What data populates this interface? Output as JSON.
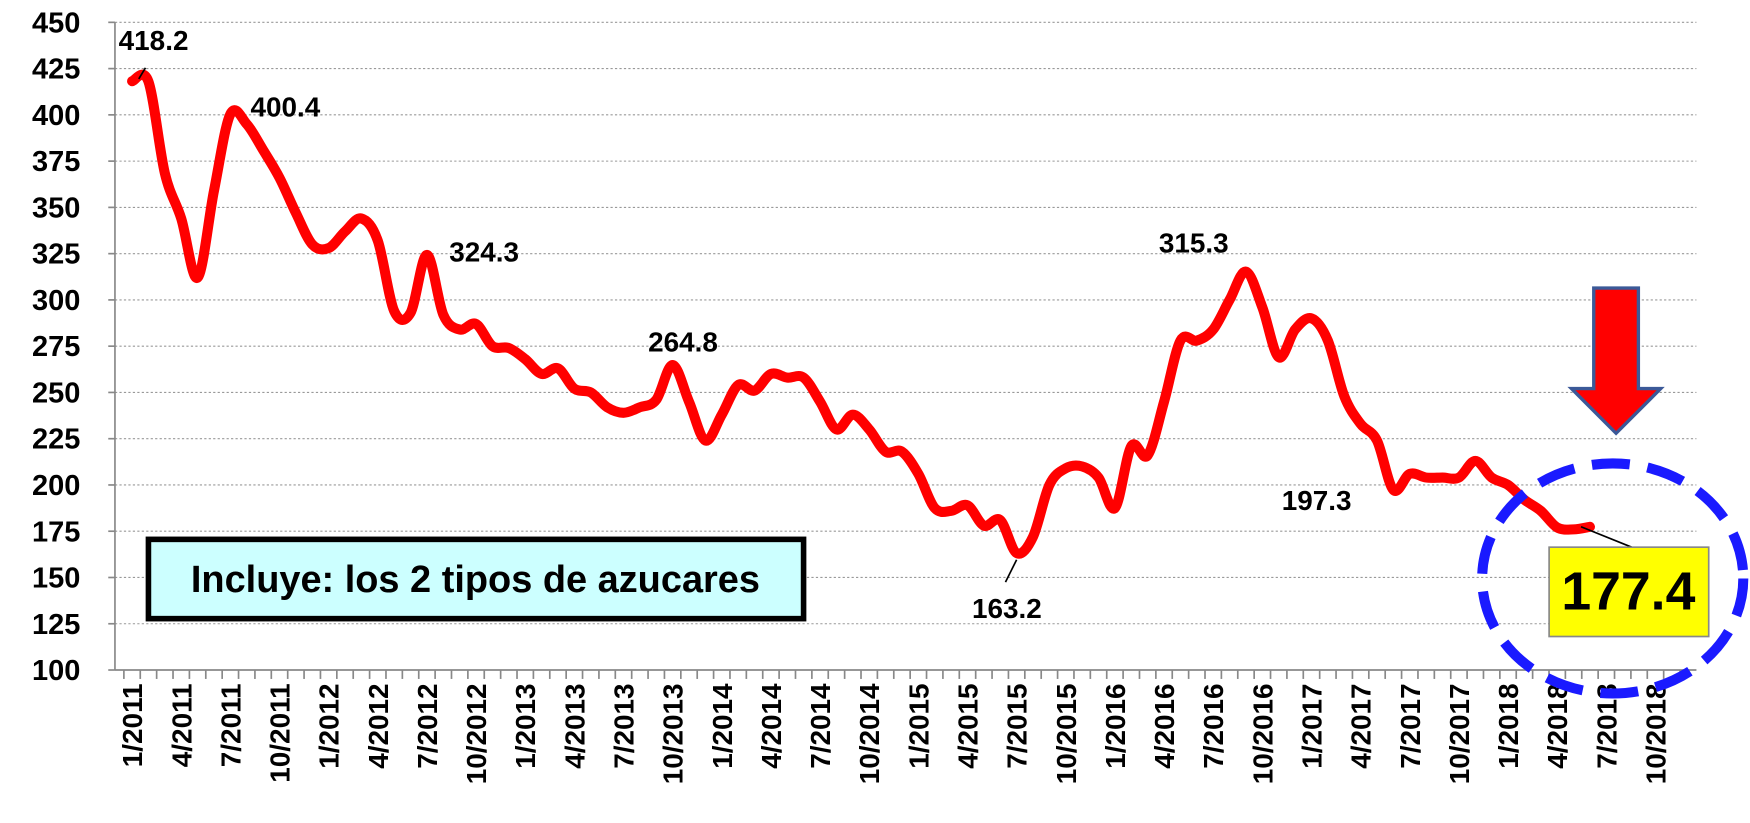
{
  "chart_data": {
    "type": "line",
    "categories": [
      "1/2011",
      null,
      null,
      "4/2011",
      null,
      null,
      "7/2011",
      null,
      null,
      "10/2011",
      null,
      null,
      "1/2012",
      null,
      null,
      "4/2012",
      null,
      null,
      "7/2012",
      null,
      null,
      "10/2012",
      null,
      null,
      "1/2013",
      null,
      null,
      "4/2013",
      null,
      null,
      "7/2013",
      null,
      null,
      "10/2013",
      null,
      null,
      "1/2014",
      null,
      null,
      "4/2014",
      null,
      null,
      "7/2014",
      null,
      null,
      "10/2014",
      null,
      null,
      "1/2015",
      null,
      null,
      "4/2015",
      null,
      null,
      "7/2015",
      null,
      null,
      "10/2015",
      null,
      null,
      "1/2016",
      null,
      null,
      "4/2016",
      null,
      null,
      "7/2016",
      null,
      null,
      "10/2016",
      null,
      null,
      "1/2017",
      null,
      null,
      "4/2017",
      null,
      null,
      "7/2017",
      null,
      null,
      "10/2017",
      null,
      null,
      "1/2018",
      null,
      null,
      "4/2018",
      null,
      null,
      "7/2018",
      null,
      null,
      "10/2018",
      null,
      null
    ],
    "series": [
      {
        "color": "#ff0000",
        "values": [
          418.2,
          418,
          368.5,
          344,
          312,
          359,
          400.4,
          395,
          381,
          366,
          347,
          330,
          328,
          337,
          344,
          332,
          294,
          293,
          324.3,
          292,
          284,
          287,
          275,
          274,
          268,
          260,
          263,
          252,
          250,
          242,
          239,
          242,
          246,
          264.8,
          245,
          224,
          238,
          254,
          251,
          260,
          258,
          258,
          245,
          230,
          238,
          230,
          218,
          218,
          206,
          187.5,
          186,
          189,
          178,
          181,
          163.2,
          172,
          200,
          209,
          210,
          204,
          187.5,
          221,
          216,
          245,
          278,
          278,
          284,
          300,
          315.3,
          296,
          269,
          284,
          290,
          278,
          248,
          233,
          224,
          197.3,
          206,
          204,
          204,
          204,
          213,
          204,
          200,
          192,
          186,
          177,
          176,
          177.4,
          null,
          null,
          null,
          null,
          null,
          null
        ]
      }
    ],
    "labeled_points": [
      0,
      6,
      18,
      33,
      54,
      68,
      77
    ],
    "highlighted_point": 89,
    "note": "Incluye: los 2 tipos de azucares",
    "ylim": [
      100,
      450
    ],
    "yticks": [
      100,
      125,
      150,
      175,
      200,
      225,
      250,
      275,
      300,
      325,
      350,
      375,
      400,
      425,
      450
    ],
    "grid": true
  }
}
